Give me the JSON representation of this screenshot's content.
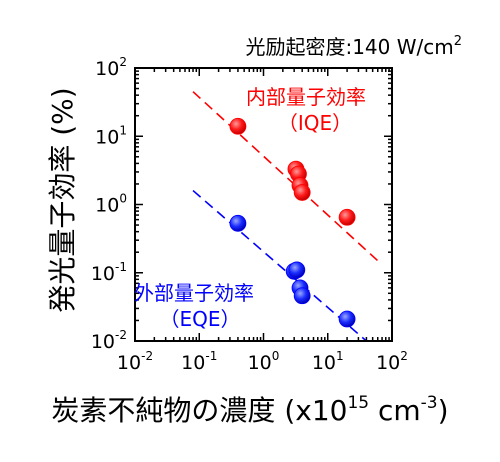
{
  "chart_data": {
    "type": "scatter",
    "xscale": "log",
    "yscale": "log",
    "xlim": [
      0.01,
      100
    ],
    "ylim": [
      0.01,
      100
    ],
    "xticks": [
      {
        "base": "10",
        "exp": "-2"
      },
      {
        "base": "10",
        "exp": "-1"
      },
      {
        "base": "10",
        "exp": "0"
      },
      {
        "base": "10",
        "exp": "1"
      },
      {
        "base": "10",
        "exp": "2"
      }
    ],
    "yticks": [
      {
        "base": "10",
        "exp": "-2"
      },
      {
        "base": "10",
        "exp": "-1"
      },
      {
        "base": "10",
        "exp": "0"
      },
      {
        "base": "10",
        "exp": "1"
      },
      {
        "base": "10",
        "exp": "2"
      }
    ],
    "title": {
      "text": "光励起密度:140 W/cm",
      "sup": "2"
    },
    "xlabel": {
      "text": "炭素不純物の濃度 (x10",
      "sup1": "15",
      "mid": " cm",
      "sup2": "-3",
      "end": ")"
    },
    "ylabel": "発光量子効率 (%)",
    "series": [
      {
        "name": "内部量子効率",
        "sub": "（IQE）",
        "color": "#ff0000",
        "x": [
          0.4,
          3.2,
          3.5,
          3.7,
          4.0,
          20
        ],
        "y": [
          14,
          3.3,
          2.8,
          1.9,
          1.5,
          0.65
        ],
        "fit": {
          "x": [
            0.08,
            60
          ],
          "y": [
            45,
            0.15
          ]
        }
      },
      {
        "name": "外部量子効率",
        "sub": "（EQE）",
        "color": "#0000ff",
        "x": [
          0.4,
          3.0,
          3.3,
          3.7,
          4.0,
          20
        ],
        "y": [
          0.53,
          0.105,
          0.11,
          0.06,
          0.046,
          0.021
        ],
        "fit": {
          "x": [
            0.08,
            40
          ],
          "y": [
            1.6,
            0.01
          ]
        }
      }
    ]
  }
}
